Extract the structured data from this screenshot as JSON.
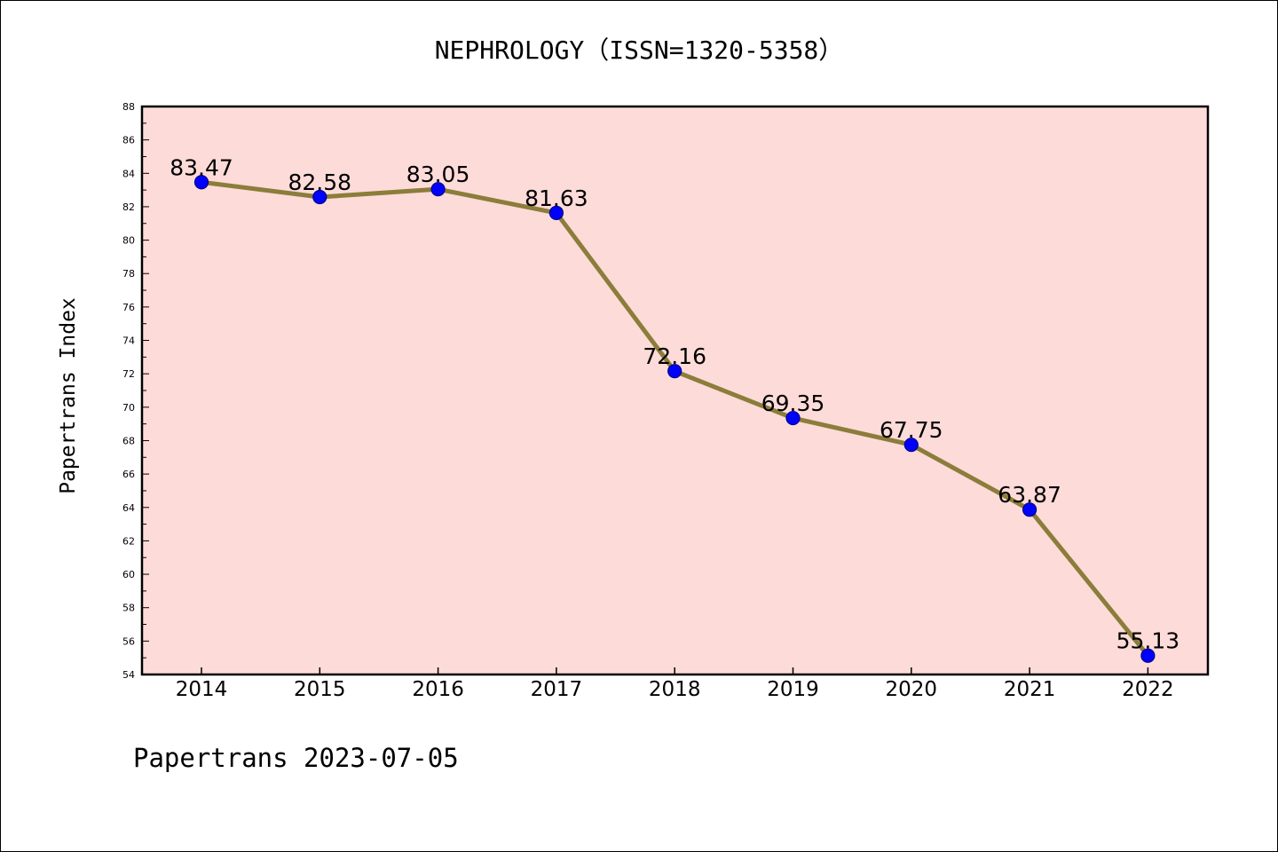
{
  "chart_data": {
    "type": "line",
    "title": "NEPHROLOGY（ISSN=1320-5358）",
    "xlabel": "",
    "ylabel": "Papertrans Index",
    "categories": [
      "2014",
      "2015",
      "2016",
      "2017",
      "2018",
      "2019",
      "2020",
      "2021",
      "2022"
    ],
    "series": [
      {
        "values": [
          83.47,
          82.58,
          83.05,
          81.63,
          72.16,
          69.35,
          67.75,
          63.87,
          55.13
        ]
      }
    ],
    "data_labels": [
      "83.47",
      "82.58",
      "83.05",
      "81.63",
      "72.16",
      "69.35",
      "67.75",
      "63.87",
      "55.13"
    ],
    "ylim": [
      54,
      88
    ],
    "yticks": [
      54,
      56,
      58,
      60,
      62,
      64,
      66,
      68,
      70,
      72,
      74,
      76,
      78,
      80,
      82,
      84,
      86,
      88
    ],
    "grid": false,
    "legend": "none",
    "colors": {
      "plot_background": "#fddbd9",
      "line": "#8b7d3a",
      "marker": "#0000ff",
      "marker_edge": "#00008b"
    }
  },
  "footer": "Papertrans 2023-07-05"
}
